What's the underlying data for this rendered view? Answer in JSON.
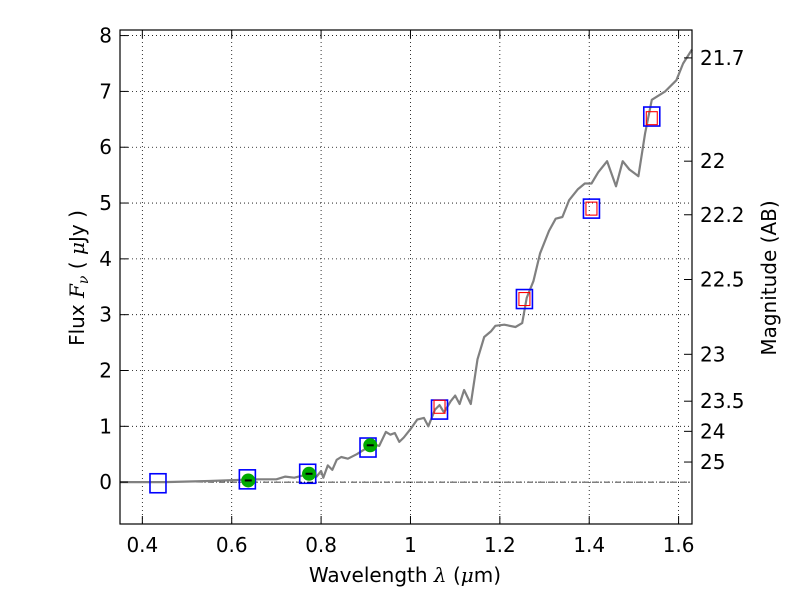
{
  "chart_data": {
    "type": "line",
    "title": "",
    "xlabel": "Wavelength  λ (μm)",
    "xlabel_parts": {
      "text": "Wavelength  ",
      "math": "λ",
      "unit_open": " (",
      "unit_mu": "μ",
      "unit_rest": "m)"
    },
    "ylabel": "Flux  Fν  ( μJy )",
    "ylabel_parts": {
      "text": "Flux  ",
      "math_F": "F",
      "math_sub": "ν",
      "unit_open": "  ( ",
      "unit_mu": "μ",
      "unit_rest": "Jy )"
    },
    "y2label": "Magnitude (AB)",
    "xlim": [
      0.35,
      1.63
    ],
    "ylim": [
      -0.75,
      8.1
    ],
    "grid": true,
    "x_ticks": [
      {
        "value": 0.4,
        "label": "0.4"
      },
      {
        "value": 0.6,
        "label": "0.6"
      },
      {
        "value": 0.8,
        "label": "0.8"
      },
      {
        "value": 1.0,
        "label": "1"
      },
      {
        "value": 1.2,
        "label": "1.2"
      },
      {
        "value": 1.4,
        "label": "1.4"
      },
      {
        "value": 1.6,
        "label": "1.6"
      }
    ],
    "y_ticks": [
      {
        "value": 0,
        "label": "0"
      },
      {
        "value": 1,
        "label": "1"
      },
      {
        "value": 2,
        "label": "2"
      },
      {
        "value": 3,
        "label": "3"
      },
      {
        "value": 4,
        "label": "4"
      },
      {
        "value": 5,
        "label": "5"
      },
      {
        "value": 6,
        "label": "6"
      },
      {
        "value": 7,
        "label": "7"
      },
      {
        "value": 8,
        "label": "8"
      }
    ],
    "y2_ticks": [
      {
        "flux": 7.6,
        "label": "21.7"
      },
      {
        "flux": 5.75,
        "label": "22"
      },
      {
        "flux": 4.79,
        "label": "22.2"
      },
      {
        "flux": 3.63,
        "label": "22.5"
      },
      {
        "flux": 2.29,
        "label": "23"
      },
      {
        "flux": 1.45,
        "label": "23.5"
      },
      {
        "flux": 0.91,
        "label": "24"
      },
      {
        "flux": 0.36,
        "label": "25"
      }
    ],
    "zero_line": 0,
    "series": [
      {
        "kind": "spectrum",
        "color": "#808080",
        "points": [
          [
            0.35,
            0.0
          ],
          [
            0.45,
            0.0
          ],
          [
            0.55,
            0.02
          ],
          [
            0.62,
            0.04
          ],
          [
            0.66,
            0.05
          ],
          [
            0.7,
            0.05
          ],
          [
            0.72,
            0.1
          ],
          [
            0.74,
            0.08
          ],
          [
            0.76,
            0.12
          ],
          [
            0.78,
            0.15
          ],
          [
            0.79,
            0.1
          ],
          [
            0.8,
            0.2
          ],
          [
            0.805,
            0.08
          ],
          [
            0.815,
            0.3
          ],
          [
            0.825,
            0.22
          ],
          [
            0.835,
            0.4
          ],
          [
            0.845,
            0.45
          ],
          [
            0.86,
            0.42
          ],
          [
            0.88,
            0.5
          ],
          [
            0.9,
            0.6
          ],
          [
            0.915,
            0.68
          ],
          [
            0.93,
            0.65
          ],
          [
            0.945,
            0.9
          ],
          [
            0.955,
            0.85
          ],
          [
            0.965,
            0.88
          ],
          [
            0.975,
            0.72
          ],
          [
            0.985,
            0.8
          ],
          [
            1.0,
            0.95
          ],
          [
            1.015,
            1.12
          ],
          [
            1.03,
            1.15
          ],
          [
            1.04,
            1.0
          ],
          [
            1.055,
            1.3
          ],
          [
            1.065,
            1.38
          ],
          [
            1.075,
            1.25
          ],
          [
            1.09,
            1.45
          ],
          [
            1.1,
            1.55
          ],
          [
            1.11,
            1.4
          ],
          [
            1.12,
            1.65
          ],
          [
            1.135,
            1.4
          ],
          [
            1.15,
            2.2
          ],
          [
            1.165,
            2.6
          ],
          [
            1.18,
            2.7
          ],
          [
            1.19,
            2.8
          ],
          [
            1.21,
            2.82
          ],
          [
            1.235,
            2.78
          ],
          [
            1.25,
            2.85
          ],
          [
            1.26,
            3.3
          ],
          [
            1.275,
            3.6
          ],
          [
            1.29,
            4.1
          ],
          [
            1.31,
            4.5
          ],
          [
            1.325,
            4.72
          ],
          [
            1.34,
            4.75
          ],
          [
            1.355,
            5.05
          ],
          [
            1.375,
            5.25
          ],
          [
            1.39,
            5.35
          ],
          [
            1.405,
            5.35
          ],
          [
            1.42,
            5.55
          ],
          [
            1.44,
            5.75
          ],
          [
            1.46,
            5.3
          ],
          [
            1.475,
            5.75
          ],
          [
            1.49,
            5.6
          ],
          [
            1.51,
            5.48
          ],
          [
            1.525,
            6.25
          ],
          [
            1.54,
            6.85
          ],
          [
            1.57,
            7.0
          ],
          [
            1.595,
            7.2
          ],
          [
            1.61,
            7.5
          ],
          [
            1.63,
            7.75
          ]
        ]
      },
      {
        "kind": "open-square-markers",
        "edge_color": "#0000ff",
        "points": [
          [
            0.435,
            -0.02
          ],
          [
            0.635,
            0.05
          ],
          [
            0.77,
            0.15
          ],
          [
            0.905,
            0.62
          ],
          [
            1.065,
            1.3
          ],
          [
            1.255,
            3.28
          ],
          [
            1.405,
            4.9
          ],
          [
            1.54,
            6.55
          ]
        ]
      },
      {
        "kind": "small-square-markers",
        "edge_color": "#ff0000",
        "points": [
          [
            1.065,
            1.35
          ],
          [
            1.255,
            3.28
          ],
          [
            1.405,
            4.9
          ],
          [
            1.54,
            6.52
          ]
        ]
      },
      {
        "kind": "filled-circle-markers",
        "color": "#00aa00",
        "points": [
          [
            0.637,
            0.03
          ],
          [
            0.773,
            0.15
          ],
          [
            0.91,
            0.66
          ]
        ]
      }
    ]
  }
}
